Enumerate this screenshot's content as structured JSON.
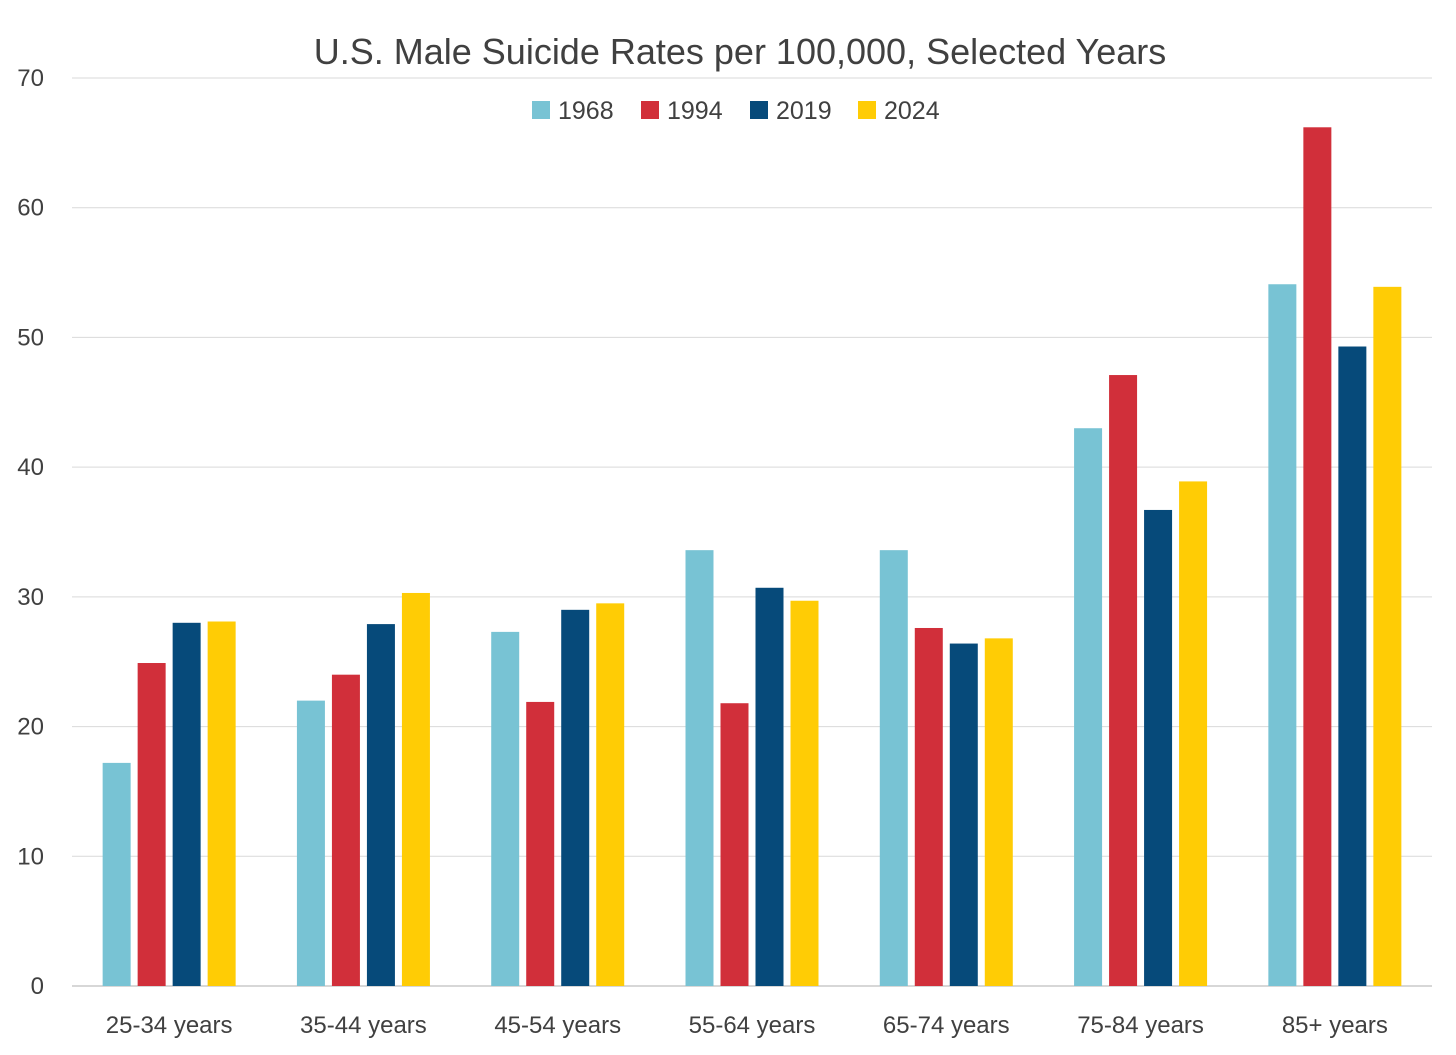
{
  "chart_data": {
    "type": "bar",
    "title": "U.S. Male Suicide Rates per 100,000, Selected Years",
    "xlabel": "",
    "ylabel": "",
    "ylim": [
      0,
      70
    ],
    "yticks": [
      0,
      10,
      20,
      30,
      40,
      50,
      60,
      70
    ],
    "grid": true,
    "legend_position": "top-center",
    "categories": [
      "25-34 years",
      "35-44 years",
      "45-54 years",
      "55-64 years",
      "65-74 years",
      "75-84 years",
      "85+ years"
    ],
    "series": [
      {
        "name": "1968",
        "color": "#78C3D4",
        "values": [
          17.2,
          22.0,
          27.3,
          33.6,
          33.6,
          43.0,
          54.1
        ]
      },
      {
        "name": "1994",
        "color": "#D12F3A",
        "values": [
          24.9,
          24.0,
          21.9,
          21.8,
          27.6,
          47.1,
          66.2
        ]
      },
      {
        "name": "2019",
        "color": "#064A7A",
        "values": [
          28.0,
          27.9,
          29.0,
          30.7,
          26.4,
          36.7,
          49.3
        ]
      },
      {
        "name": "2024",
        "color": "#FFCC05",
        "values": [
          28.1,
          30.3,
          29.5,
          29.7,
          26.8,
          38.9,
          53.9
        ]
      }
    ]
  }
}
